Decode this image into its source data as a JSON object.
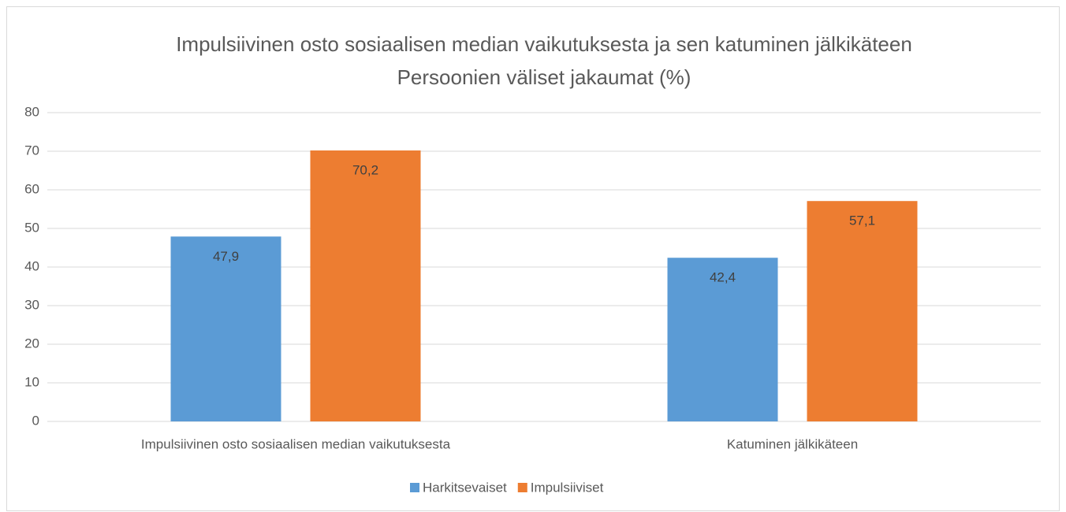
{
  "chart_data": {
    "type": "bar",
    "title": "Impulsiivinen osto sosiaalisen median vaikutuksesta ja sen katuminen jälkikäteen",
    "subtitle": "Persoonien väliset jakaumat (%)",
    "categories": [
      "Impulsiivinen osto sosiaalisen median vaikutuksesta",
      "Katuminen jälkikäteen"
    ],
    "series": [
      {
        "name": "Harkitsevaiset",
        "color": "#5b9bd5",
        "values": [
          47.9,
          42.4
        ],
        "value_labels": [
          "47,9",
          "42,4"
        ]
      },
      {
        "name": "Impulsiiviset",
        "color": "#ed7d31",
        "values": [
          70.2,
          57.1
        ],
        "value_labels": [
          "70,2",
          "57,1"
        ]
      }
    ],
    "ylim": [
      0,
      80
    ],
    "yticks": [
      0,
      10,
      20,
      30,
      40,
      50,
      60,
      70,
      80
    ],
    "grid": true,
    "legend": "bottom"
  }
}
